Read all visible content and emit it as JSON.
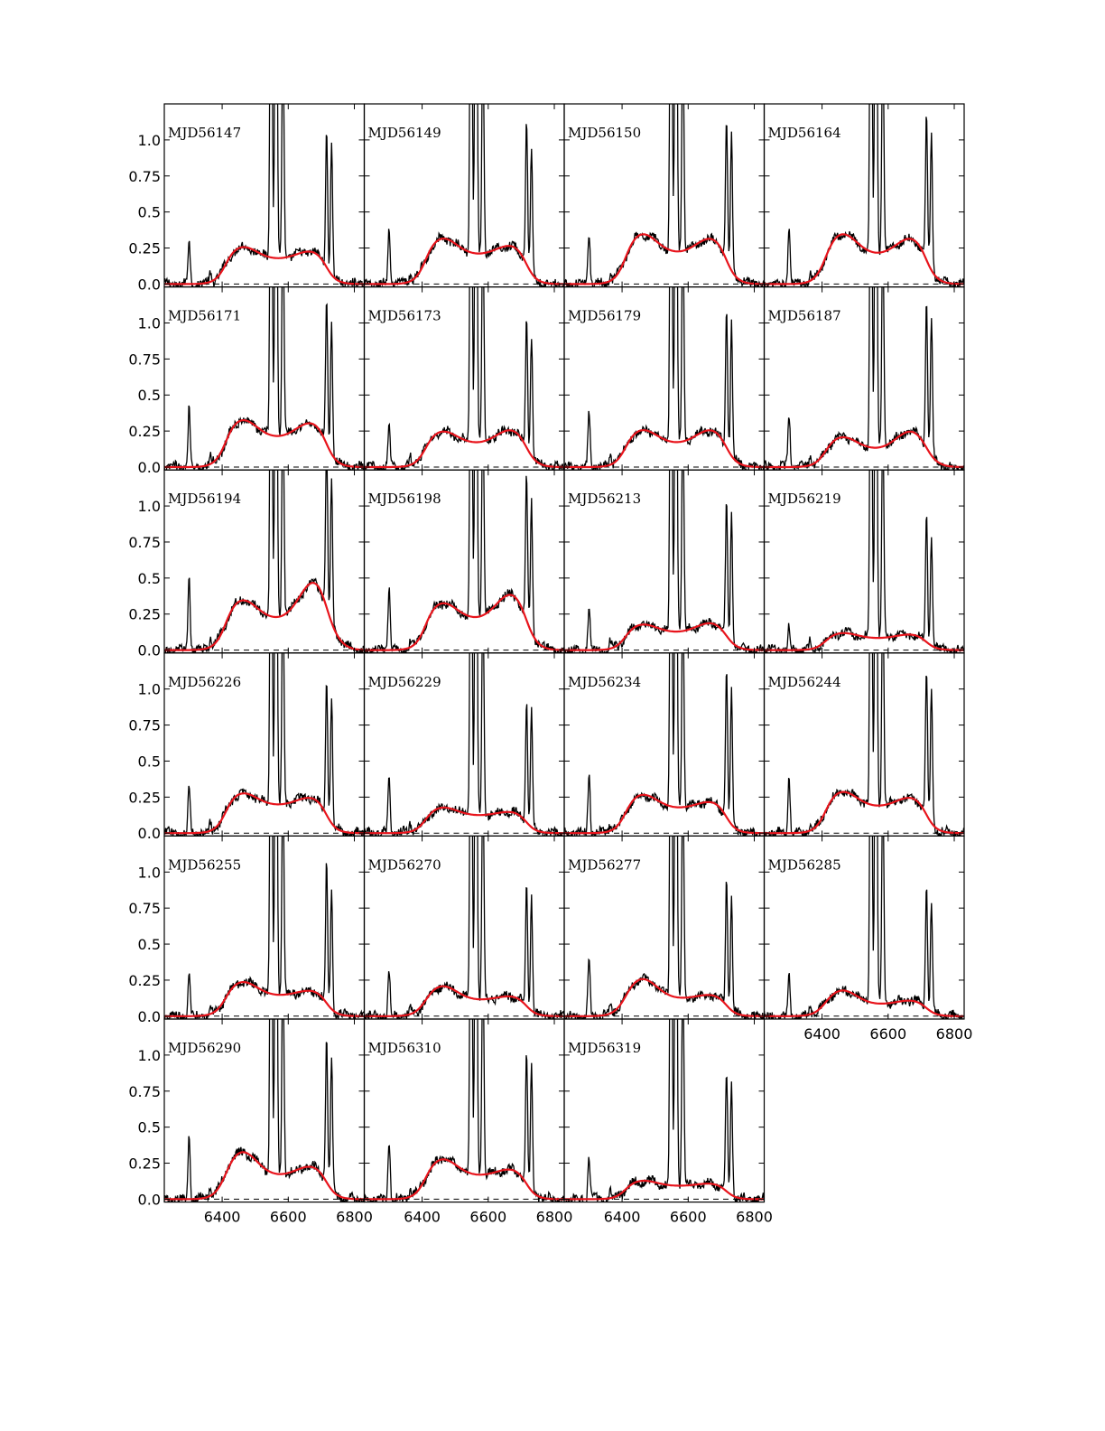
{
  "chart_data": {
    "type": "line",
    "title": "",
    "xlabel": "",
    "ylabel": "",
    "xlim": [
      6225,
      6830
    ],
    "ylim": [
      -0.02,
      1.25
    ],
    "xticks": [
      6400,
      6600,
      6800
    ],
    "yticks": [
      0.0,
      0.25,
      0.5,
      0.75,
      1.0
    ],
    "ytick_labels": [
      "0.0",
      "0.25",
      "0.5",
      "0.75",
      "1.0"
    ],
    "grid": false,
    "layout": {
      "columns": 4,
      "rows": 6
    },
    "colors": {
      "data": "#000000",
      "model": "#e8141c"
    },
    "series_styles": {
      "data": {
        "color": "#000000",
        "style": "solid"
      },
      "model": {
        "color": "#e8141c",
        "style": "solid"
      },
      "zero": {
        "color": "#000000",
        "style": "dashed"
      }
    },
    "panels": [
      {
        "label": "MJD56147",
        "blue_peak": 0.26,
        "red_peak": 0.23,
        "center": 0.17,
        "oi": 0.31,
        "sii": [
          1.0,
          0.97
        ],
        "blue_pos": 6460,
        "red_pos": 6670,
        "width": 45
      },
      {
        "label": "MJD56149",
        "blue_peak": 0.32,
        "red_peak": 0.27,
        "center": 0.2,
        "oi": 0.4,
        "sii": [
          1.08,
          0.92
        ],
        "blue_pos": 6460,
        "red_pos": 6670,
        "width": 45
      },
      {
        "label": "MJD56150",
        "blue_peak": 0.35,
        "red_peak": 0.32,
        "center": 0.21,
        "oi": 0.38,
        "sii": [
          1.05,
          0.98
        ],
        "blue_pos": 6460,
        "red_pos": 6670,
        "width": 45
      },
      {
        "label": "MJD56164",
        "blue_peak": 0.35,
        "red_peak": 0.32,
        "center": 0.2,
        "oi": 0.39,
        "sii": [
          1.07,
          1.0
        ],
        "blue_pos": 6460,
        "red_pos": 6670,
        "width": 45
      },
      {
        "label": "MJD56171",
        "blue_peak": 0.33,
        "red_peak": 0.31,
        "center": 0.2,
        "oi": 0.42,
        "sii": [
          1.07,
          0.99
        ],
        "blue_pos": 6460,
        "red_pos": 6670,
        "width": 45
      },
      {
        "label": "MJD56173",
        "blue_peak": 0.25,
        "red_peak": 0.26,
        "center": 0.16,
        "oi": 0.3,
        "sii": [
          0.96,
          0.9
        ],
        "blue_pos": 6460,
        "red_pos": 6670,
        "width": 45
      },
      {
        "label": "MJD56179",
        "blue_peak": 0.26,
        "red_peak": 0.26,
        "center": 0.16,
        "oi": 0.38,
        "sii": [
          1.03,
          0.98
        ],
        "blue_pos": 6460,
        "red_pos": 6670,
        "width": 45
      },
      {
        "label": "MJD56187",
        "blue_peak": 0.21,
        "red_peak": 0.25,
        "center": 0.12,
        "oi": 0.38,
        "sii": [
          1.07,
          0.99
        ],
        "blue_pos": 6460,
        "red_pos": 6670,
        "width": 45
      },
      {
        "label": "MJD56194",
        "blue_peak": 0.35,
        "red_peak": 0.48,
        "center": 0.21,
        "oi": 0.52,
        "sii": [
          1.2,
          1.05
        ],
        "blue_pos": 6460,
        "red_pos": 6680,
        "width": 45
      },
      {
        "label": "MJD56198",
        "blue_peak": 0.33,
        "red_peak": 0.39,
        "center": 0.21,
        "oi": 0.46,
        "sii": [
          1.06,
          0.95
        ],
        "blue_pos": 6460,
        "red_pos": 6670,
        "width": 45
      },
      {
        "label": "MJD56213",
        "blue_peak": 0.18,
        "red_peak": 0.19,
        "center": 0.12,
        "oi": 0.3,
        "sii": [
          1.0,
          0.95
        ],
        "blue_pos": 6460,
        "red_pos": 6670,
        "width": 45
      },
      {
        "label": "MJD56219",
        "blue_peak": 0.12,
        "red_peak": 0.11,
        "center": 0.08,
        "oi": 0.16,
        "sii": [
          0.97,
          0.82
        ],
        "blue_pos": 6460,
        "red_pos": 6670,
        "width": 45
      },
      {
        "label": "MJD56226",
        "blue_peak": 0.28,
        "red_peak": 0.25,
        "center": 0.19,
        "oi": 0.34,
        "sii": [
          1.0,
          0.94
        ],
        "blue_pos": 6460,
        "red_pos": 6670,
        "width": 45
      },
      {
        "label": "MJD56229",
        "blue_peak": 0.18,
        "red_peak": 0.15,
        "center": 0.12,
        "oi": 0.38,
        "sii": [
          0.91,
          0.85
        ],
        "blue_pos": 6460,
        "red_pos": 6670,
        "width": 45
      },
      {
        "label": "MJD56234",
        "blue_peak": 0.27,
        "red_peak": 0.22,
        "center": 0.17,
        "oi": 0.43,
        "sii": [
          1.07,
          0.98
        ],
        "blue_pos": 6460,
        "red_pos": 6670,
        "width": 45
      },
      {
        "label": "MJD56244",
        "blue_peak": 0.29,
        "red_peak": 0.25,
        "center": 0.18,
        "oi": 0.41,
        "sii": [
          1.07,
          0.98
        ],
        "blue_pos": 6460,
        "red_pos": 6670,
        "width": 45
      },
      {
        "label": "MJD56255",
        "blue_peak": 0.24,
        "red_peak": 0.18,
        "center": 0.14,
        "oi": 0.33,
        "sii": [
          1.04,
          0.91
        ],
        "blue_pos": 6460,
        "red_pos": 6670,
        "width": 45
      },
      {
        "label": "MJD56270",
        "blue_peak": 0.21,
        "red_peak": 0.14,
        "center": 0.11,
        "oi": 0.32,
        "sii": [
          0.92,
          0.85
        ],
        "blue_pos": 6460,
        "red_pos": 6670,
        "width": 45
      },
      {
        "label": "MJD56277",
        "blue_peak": 0.26,
        "red_peak": 0.15,
        "center": 0.12,
        "oi": 0.37,
        "sii": [
          0.94,
          0.85
        ],
        "blue_pos": 6460,
        "red_pos": 6670,
        "width": 45
      },
      {
        "label": "MJD56285",
        "blue_peak": 0.18,
        "red_peak": 0.11,
        "center": 0.08,
        "oi": 0.3,
        "sii": [
          0.92,
          0.81
        ],
        "blue_pos": 6460,
        "red_pos": 6670,
        "width": 45
      },
      {
        "label": "MJD56290",
        "blue_peak": 0.33,
        "red_peak": 0.23,
        "center": 0.16,
        "oi": 0.45,
        "sii": [
          1.05,
          0.98
        ],
        "blue_pos": 6460,
        "red_pos": 6670,
        "width": 45
      },
      {
        "label": "MJD56310",
        "blue_peak": 0.28,
        "red_peak": 0.21,
        "center": 0.16,
        "oi": 0.42,
        "sii": [
          0.98,
          0.91
        ],
        "blue_pos": 6460,
        "red_pos": 6670,
        "width": 45
      },
      {
        "label": "MJD56319",
        "blue_peak": 0.13,
        "red_peak": 0.11,
        "center": 0.09,
        "oi": 0.31,
        "sii": [
          0.89,
          0.84
        ],
        "blue_pos": 6460,
        "red_pos": 6670,
        "width": 45
      }
    ],
    "bottom_axis_panels": [
      "MJD56285",
      "MJD56290",
      "MJD56310",
      "MJD56319"
    ]
  }
}
